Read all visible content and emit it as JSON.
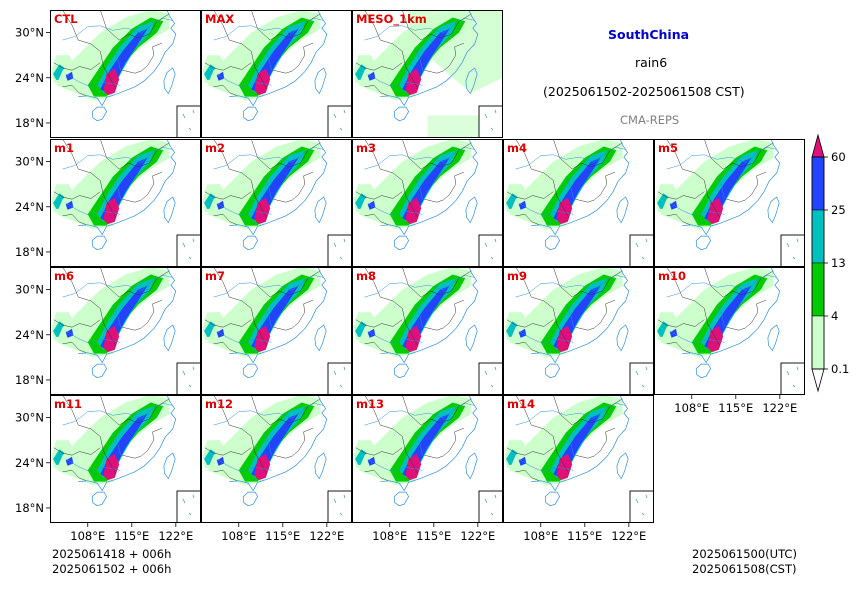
{
  "title": {
    "region": "SouthChina",
    "variable": "rain6",
    "period": "(2025061502-2025061508 CST)",
    "model": "CMA-REPS",
    "region_color": "#0000cc",
    "model_color": "#808080"
  },
  "footer": {
    "left_line1": "2025061418  +  006h",
    "left_line2": "2025061502  +  006h",
    "right_line1": "2025061500(UTC)",
    "right_line2": "2025061508(CST)"
  },
  "chart_data": {
    "type": "heatmap",
    "description_kind": "ensemble precipitation maps",
    "panels": [
      {
        "label": "CTL",
        "row": 0,
        "col": 0
      },
      {
        "label": "MAX",
        "row": 0,
        "col": 1
      },
      {
        "label": "MESO_1km",
        "row": 0,
        "col": 2
      },
      {
        "label": "m1",
        "row": 1,
        "col": 0
      },
      {
        "label": "m2",
        "row": 1,
        "col": 1
      },
      {
        "label": "m3",
        "row": 1,
        "col": 2
      },
      {
        "label": "m4",
        "row": 1,
        "col": 3
      },
      {
        "label": "m5",
        "row": 1,
        "col": 4
      },
      {
        "label": "m6",
        "row": 2,
        "col": 0
      },
      {
        "label": "m7",
        "row": 2,
        "col": 1
      },
      {
        "label": "m8",
        "row": 2,
        "col": 2
      },
      {
        "label": "m9",
        "row": 2,
        "col": 3
      },
      {
        "label": "m10",
        "row": 2,
        "col": 4
      },
      {
        "label": "m11",
        "row": 3,
        "col": 0
      },
      {
        "label": "m12",
        "row": 3,
        "col": 1
      },
      {
        "label": "m13",
        "row": 3,
        "col": 2
      },
      {
        "label": "m14",
        "row": 3,
        "col": 3
      }
    ],
    "x_ticks": [
      "108°E",
      "115°E",
      "122°E"
    ],
    "x_tick_values": [
      108,
      115,
      122
    ],
    "y_ticks": [
      "30°N",
      "24°N",
      "18°N"
    ],
    "y_tick_values": [
      30,
      24,
      18
    ],
    "lon_range": [
      102,
      126
    ],
    "lat_range": [
      16,
      33
    ],
    "colorbar": {
      "levels": [
        "0.1",
        "4",
        "13",
        "25",
        "60"
      ],
      "colors": [
        "#ccffcc",
        "#00cc00",
        "#00bfbf",
        "#2244ff",
        "#e0107a"
      ],
      "extend": "both"
    }
  }
}
